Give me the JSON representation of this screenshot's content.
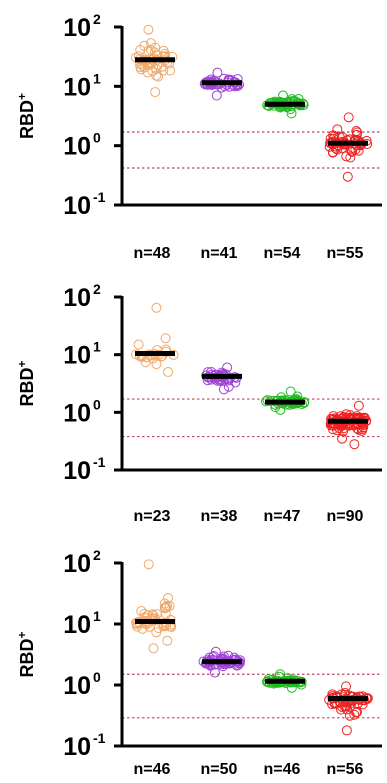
{
  "chart_data": [
    {
      "type": "scatter",
      "ylabel": "RBD",
      "ylabel_sup": "+",
      "yscale": "log",
      "ylim": [
        0.1,
        100
      ],
      "yticks": [
        {
          "base": "10",
          "exp": "2"
        },
        {
          "base": "10",
          "exp": "1"
        },
        {
          "base": "10",
          "exp": "0"
        },
        {
          "base": "10",
          "exp": "-1"
        }
      ],
      "thresholds": [
        1.7,
        0.42
      ],
      "groups": [
        {
          "label": "n=48",
          "n": 48,
          "median": 28,
          "min": 8,
          "max": 90,
          "color": "#f0a868"
        },
        {
          "label": "n=41",
          "n": 41,
          "median": 11.5,
          "min": 7,
          "max": 17,
          "color": "#a040d8"
        },
        {
          "label": "n=54",
          "n": 54,
          "median": 5,
          "min": 3.5,
          "max": 7,
          "color": "#22bb22"
        },
        {
          "label": "n=55",
          "n": 55,
          "median": 1.1,
          "min": 0.3,
          "max": 3,
          "color": "#ee2222"
        }
      ]
    },
    {
      "type": "scatter",
      "ylabel": "RBD",
      "ylabel_sup": "+",
      "yscale": "log",
      "ylim": [
        0.1,
        100
      ],
      "yticks": [
        {
          "base": "10",
          "exp": "2"
        },
        {
          "base": "10",
          "exp": "1"
        },
        {
          "base": "10",
          "exp": "0"
        },
        {
          "base": "10",
          "exp": "-1"
        }
      ],
      "thresholds": [
        1.7,
        0.38
      ],
      "groups": [
        {
          "label": "n=23",
          "n": 23,
          "median": 10.5,
          "min": 5,
          "max": 65,
          "color": "#f0a868"
        },
        {
          "label": "n=38",
          "n": 38,
          "median": 4.2,
          "min": 2.5,
          "max": 6,
          "color": "#a040d8"
        },
        {
          "label": "n=47",
          "n": 47,
          "median": 1.5,
          "min": 1.1,
          "max": 2.3,
          "color": "#22bb22"
        },
        {
          "label": "n=90",
          "n": 90,
          "median": 0.7,
          "min": 0.28,
          "max": 1.3,
          "color": "#ee2222"
        }
      ]
    },
    {
      "type": "scatter",
      "ylabel": "RBD",
      "ylabel_sup": "+",
      "yscale": "log",
      "ylim": [
        0.1,
        100
      ],
      "yticks": [
        {
          "base": "10",
          "exp": "2"
        },
        {
          "base": "10",
          "exp": "1"
        },
        {
          "base": "10",
          "exp": "0"
        },
        {
          "base": "10",
          "exp": "-1"
        }
      ],
      "thresholds": [
        1.5,
        0.29
      ],
      "groups": [
        {
          "label": "n=46",
          "n": 46,
          "median": 11,
          "min": 4,
          "max": 95,
          "color": "#f0a868"
        },
        {
          "label": "n=50",
          "n": 50,
          "median": 2.4,
          "min": 1.6,
          "max": 3.5,
          "color": "#a040d8"
        },
        {
          "label": "n=46",
          "n": 46,
          "median": 1.15,
          "min": 0.9,
          "max": 1.5,
          "color": "#22bb22"
        },
        {
          "label": "n=56",
          "n": 56,
          "median": 0.6,
          "min": 0.18,
          "max": 0.95,
          "color": "#ee2222"
        }
      ]
    }
  ]
}
